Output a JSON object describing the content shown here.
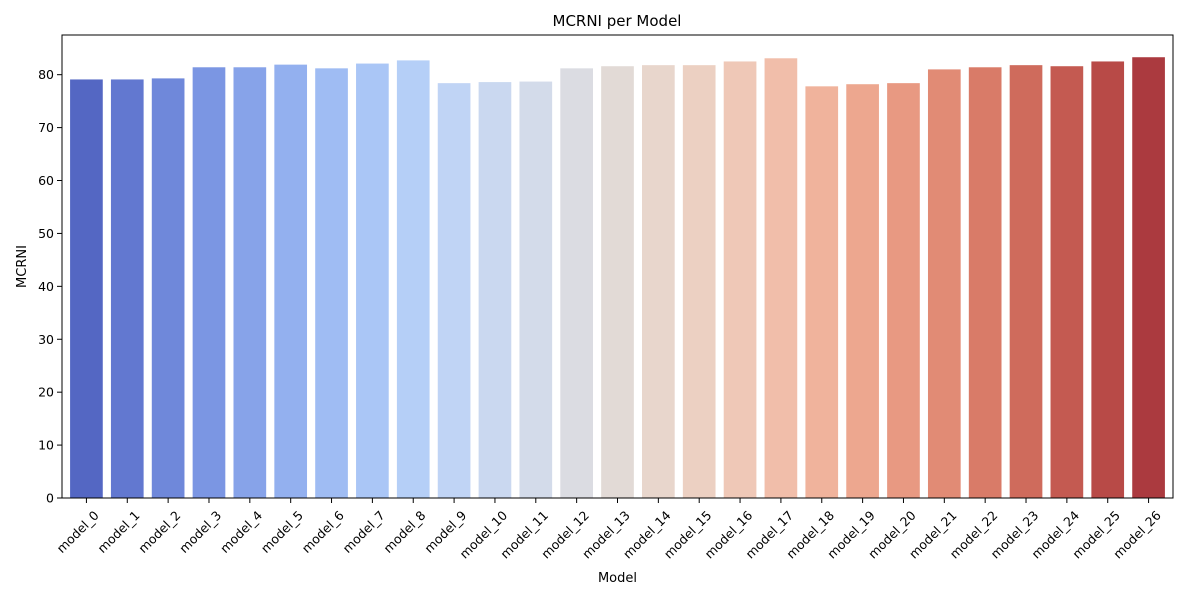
{
  "chart_data": {
    "type": "bar",
    "title": "MCRNI per Model",
    "xlabel": "Model",
    "ylabel": "MCRNI",
    "ylim": [
      0,
      87.5
    ],
    "yticks": [
      0,
      10,
      20,
      30,
      40,
      50,
      60,
      70,
      80
    ],
    "grid": false,
    "legend": "none",
    "categories": [
      "model_0",
      "model_1",
      "model_2",
      "model_3",
      "model_4",
      "model_5",
      "model_6",
      "model_7",
      "model_8",
      "model_9",
      "model_10",
      "model_11",
      "model_12",
      "model_13",
      "model_14",
      "model_15",
      "model_16",
      "model_17",
      "model_18",
      "model_19",
      "model_20",
      "model_21",
      "model_22",
      "model_23",
      "model_24",
      "model_25",
      "model_26"
    ],
    "values": [
      79.1,
      79.1,
      79.3,
      81.4,
      81.4,
      81.9,
      81.2,
      82.1,
      82.7,
      78.4,
      78.6,
      78.7,
      81.2,
      81.6,
      81.8,
      81.8,
      82.5,
      83.1,
      77.8,
      78.2,
      78.4,
      81.0,
      81.4,
      81.8,
      81.6,
      82.5,
      83.3
    ],
    "colors": [
      "#5467c3",
      "#6278d0",
      "#6f88da",
      "#7b96e3",
      "#87a3e9",
      "#93b0ef",
      "#9fbcf3",
      "#aac6f6",
      "#b5cff7",
      "#c0d4f5",
      "#cad8f0",
      "#d3dbea",
      "#dbdce2",
      "#e2dad6",
      "#e8d6cc",
      "#ecd0c2",
      "#efc8b7",
      "#f1beaa",
      "#f0b39c",
      "#eda78f",
      "#e89982",
      "#e18b75",
      "#d97b68",
      "#cf6b5c",
      "#c45a51",
      "#b84a47",
      "#ab3a3f"
    ]
  }
}
